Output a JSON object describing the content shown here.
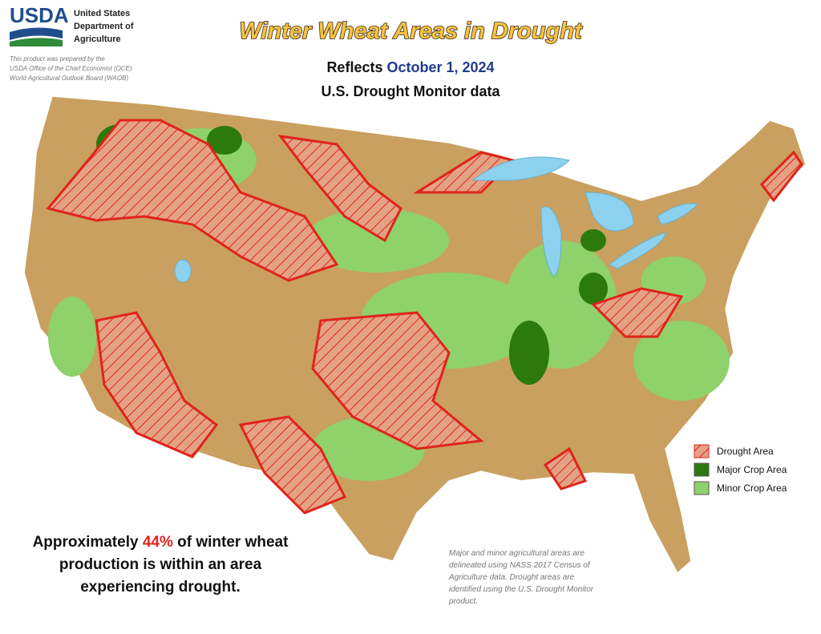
{
  "header": {
    "logo": "USDA",
    "agency": [
      "United States",
      "Department of",
      "Agriculture"
    ],
    "credit": [
      "This product was prepared by the",
      "USDA Office of the Chief Economist (OCE)",
      "World Agricultural Outlook Board (WAOB)"
    ]
  },
  "title": "Winter Wheat Areas in Drought",
  "subtitle": {
    "prefix": "Reflects",
    "date": "October 1, 2024",
    "source": "U.S. Drought Monitor data"
  },
  "legend": [
    {
      "label": "Drought Area"
    },
    {
      "label": "Major Crop Area"
    },
    {
      "label": "Minor Crop Area"
    }
  ],
  "summary": {
    "lead": "Approximately",
    "share": "44%",
    "tail": "of winter wheat",
    "lines": [
      "production is within an area",
      "experiencing drought."
    ]
  },
  "note": [
    "Major and minor agricultural areas are",
    "delineated using NASS 2017 Census of",
    "Agriculture data.  Drought areas are",
    "identified using the U.S. Drought Monitor",
    "product."
  ]
}
